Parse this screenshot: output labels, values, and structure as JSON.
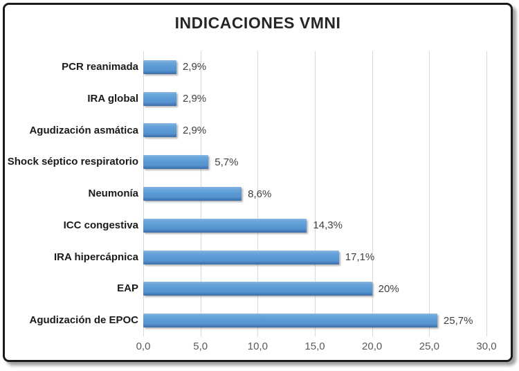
{
  "title": "INDICACIONES VMNI",
  "chart_data": {
    "type": "bar",
    "orientation": "horizontal",
    "title": "INDICACIONES VMNI",
    "categories": [
      "PCR reanimada",
      "IRA global",
      "Agudización asmática",
      "Shock séptico respiratorio",
      "Neumonía",
      "ICC congestiva",
      "IRA hipercápnica",
      "EAP",
      "Agudización de EPOC"
    ],
    "values": [
      2.9,
      2.9,
      2.9,
      5.7,
      8.6,
      14.3,
      17.1,
      20,
      25.7
    ],
    "value_labels": [
      "2,9%",
      "2,9%",
      "2,9%",
      "5,7%",
      "8,6%",
      "14,3%",
      "17,1%",
      "20%",
      "25,7%"
    ],
    "x_tick_labels": [
      "0,0",
      "5,0",
      "10,0",
      "15,0",
      "20,0",
      "25,0",
      "30,0"
    ],
    "x_tick_values": [
      0,
      5,
      10,
      15,
      20,
      25,
      30
    ],
    "xlim": [
      0,
      30
    ],
    "xlabel": "",
    "ylabel": "",
    "grid": true,
    "legend": false,
    "bar_color": "#5b9bd5",
    "gridline_color": "#d9d9d9",
    "frame_color": "#1a1a1a",
    "label_color": "#3f3f3f",
    "tick_color": "#595959"
  }
}
